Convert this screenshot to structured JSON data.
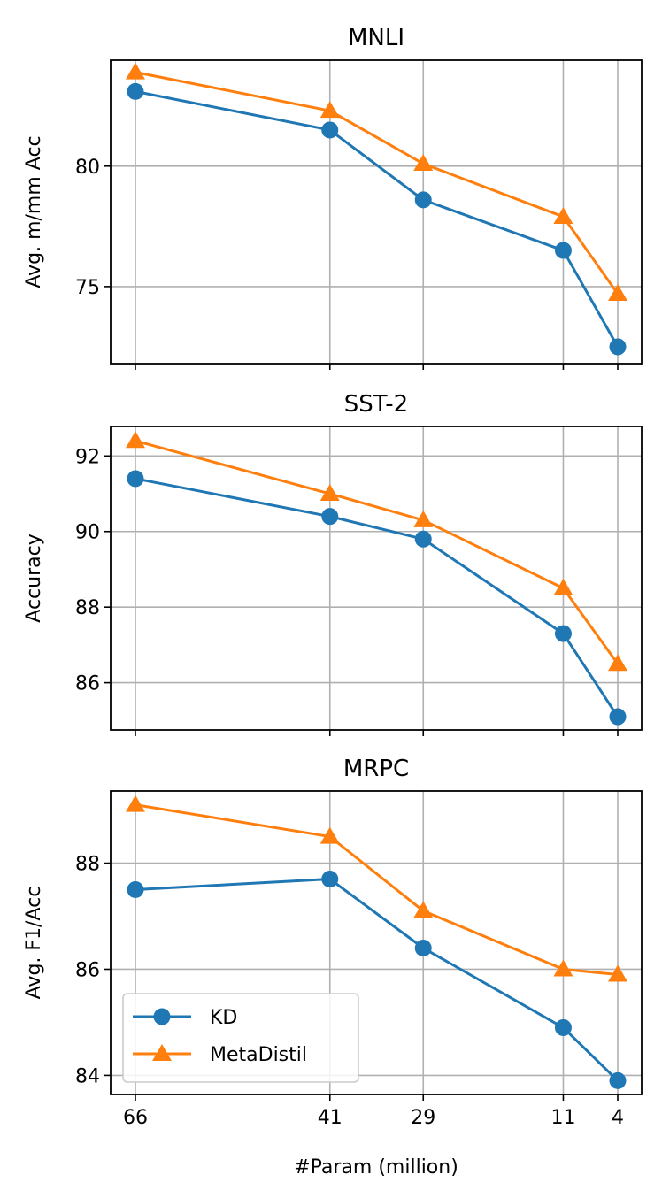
{
  "figure": {
    "xlabel": "#Param (million)"
  },
  "legend": {
    "location": "lower-left",
    "entries": [
      "KD",
      "MetaDistil"
    ]
  },
  "colors": {
    "kd": "#1f77b4",
    "metadistil": "#ff7f0e",
    "grid": "#b0b0b0"
  },
  "chart_data": [
    {
      "type": "line",
      "title": "MNLI",
      "ylabel": "Avg. m/mm Acc",
      "categories": [
        "66",
        "41",
        "29",
        "11",
        "4"
      ],
      "ylim": [
        71.8,
        84.4
      ],
      "yticks": [
        75,
        80
      ],
      "ytick_labels": [
        "75",
        "80"
      ],
      "show_xtick_labels": false,
      "grid": true,
      "series": [
        {
          "name": "KD",
          "marker": "circle",
          "values": [
            83.1,
            81.5,
            78.6,
            76.5,
            72.5
          ]
        },
        {
          "name": "MetaDistil",
          "marker": "triangle",
          "values": [
            83.9,
            82.3,
            80.1,
            77.9,
            74.7
          ]
        }
      ]
    },
    {
      "type": "line",
      "title": "SST-2",
      "ylabel": "Accuracy",
      "categories": [
        "66",
        "41",
        "29",
        "11",
        "4"
      ],
      "ylim": [
        84.75,
        92.78
      ],
      "yticks": [
        86,
        88,
        90,
        92
      ],
      "ytick_labels": [
        "86",
        "88",
        "90",
        "92"
      ],
      "show_xtick_labels": false,
      "grid": true,
      "series": [
        {
          "name": "KD",
          "marker": "circle",
          "values": [
            91.4,
            90.4,
            89.8,
            87.3,
            85.1
          ]
        },
        {
          "name": "MetaDistil",
          "marker": "triangle",
          "values": [
            92.4,
            91.0,
            90.3,
            88.5,
            86.5
          ]
        }
      ]
    },
    {
      "type": "line",
      "title": "MRPC",
      "ylabel": "Avg. F1/Acc",
      "categories": [
        "66",
        "41",
        "29",
        "11",
        "4"
      ],
      "ylim": [
        83.64,
        89.36
      ],
      "yticks": [
        84,
        86,
        88
      ],
      "ytick_labels": [
        "84",
        "86",
        "88"
      ],
      "show_xtick_labels": true,
      "grid": true,
      "series": [
        {
          "name": "KD",
          "marker": "circle",
          "values": [
            87.5,
            87.7,
            86.4,
            84.9,
            83.9
          ]
        },
        {
          "name": "MetaDistil",
          "marker": "triangle",
          "values": [
            89.1,
            88.5,
            87.1,
            86.0,
            85.9
          ]
        }
      ]
    }
  ]
}
